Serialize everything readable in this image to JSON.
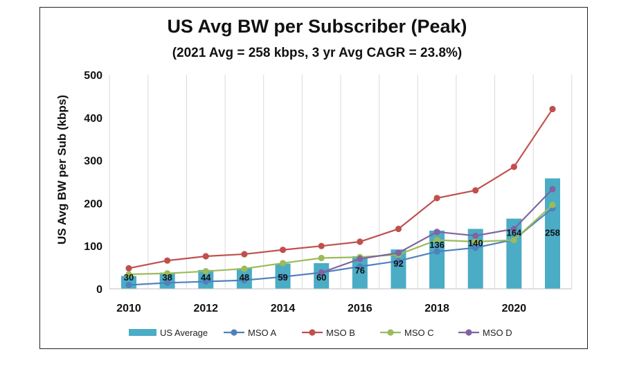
{
  "chart_data": {
    "type": "bar+line",
    "title": "US Avg BW per Subscriber (Peak)",
    "subtitle": "(2021 Avg = 258 kbps, 3 yr Avg CAGR = 23.8%)",
    "ylabel": "US Avg BW per Sub (kbps)",
    "xlabel": "",
    "x": [
      2010,
      2011,
      2012,
      2013,
      2014,
      2015,
      2016,
      2017,
      2018,
      2019,
      2020,
      2021
    ],
    "x_ticks": [
      "2010",
      "2012",
      "2014",
      "2016",
      "2018",
      "2020"
    ],
    "ylim": [
      0,
      500
    ],
    "y_ticks": [
      "0",
      "100",
      "200",
      "300",
      "400",
      "500"
    ],
    "grid": "vertical",
    "legend_position": "bottom",
    "series": [
      {
        "name": "US Average",
        "kind": "bar",
        "color": "#4BACC6",
        "values": [
          30,
          38,
          44,
          48,
          59,
          60,
          76,
          92,
          136,
          140,
          164,
          258
        ],
        "labels": [
          "30",
          "38",
          "44",
          "48",
          "59",
          "60",
          "76",
          "92",
          "136",
          "140",
          "164",
          "258"
        ]
      },
      {
        "name": "MSO A",
        "kind": "line",
        "color": "#4F81BD",
        "values": [
          9,
          14,
          17,
          20,
          28,
          38,
          52,
          65,
          87,
          96,
          115,
          188
        ]
      },
      {
        "name": "MSO B",
        "kind": "line",
        "color": "#C0504D",
        "values": [
          48,
          66,
          76,
          81,
          91,
          100,
          110,
          140,
          212,
          230,
          285,
          420
        ]
      },
      {
        "name": "MSO C",
        "kind": "line",
        "color": "#9BBB59",
        "values": [
          34,
          36,
          41,
          47,
          60,
          72,
          74,
          80,
          114,
          110,
          114,
          196
        ]
      },
      {
        "name": "MSO D",
        "kind": "line",
        "color": "#8064A2",
        "values": [
          null,
          null,
          null,
          null,
          null,
          38,
          70,
          84,
          133,
          124,
          140,
          233
        ]
      }
    ]
  }
}
